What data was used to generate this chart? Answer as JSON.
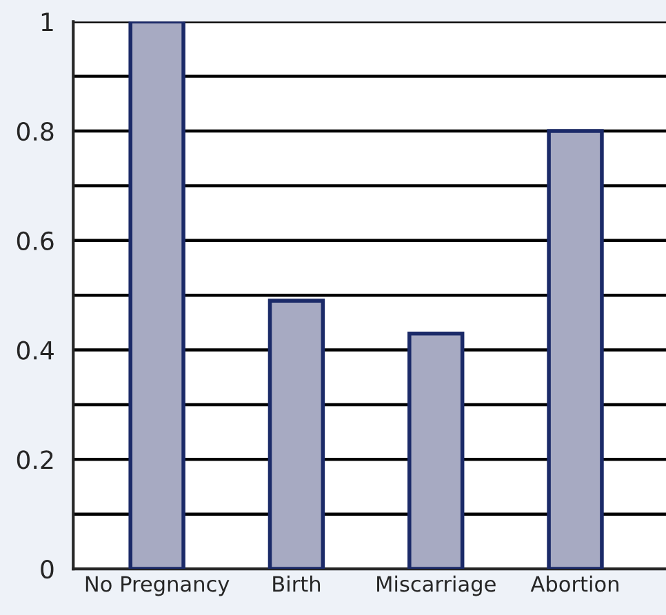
{
  "chart_data": {
    "type": "bar",
    "categories": [
      "No Pregnancy",
      "Birth",
      "Miscarriage",
      "Abortion"
    ],
    "values": [
      1.0,
      0.49,
      0.43,
      0.8
    ],
    "color": "#a7aac2",
    "ylim": [
      0,
      1
    ],
    "yticks": [
      0,
      {
        "value": 0.1,
        "label": null
      },
      0.2,
      {
        "value": 0.3,
        "label": null
      },
      0.4,
      {
        "value": 0.5,
        "label": null
      },
      0.6,
      {
        "value": 0.7,
        "label": null
      },
      0.8,
      {
        "value": 0.9,
        "label": null
      },
      1
    ],
    "grid": "y"
  }
}
